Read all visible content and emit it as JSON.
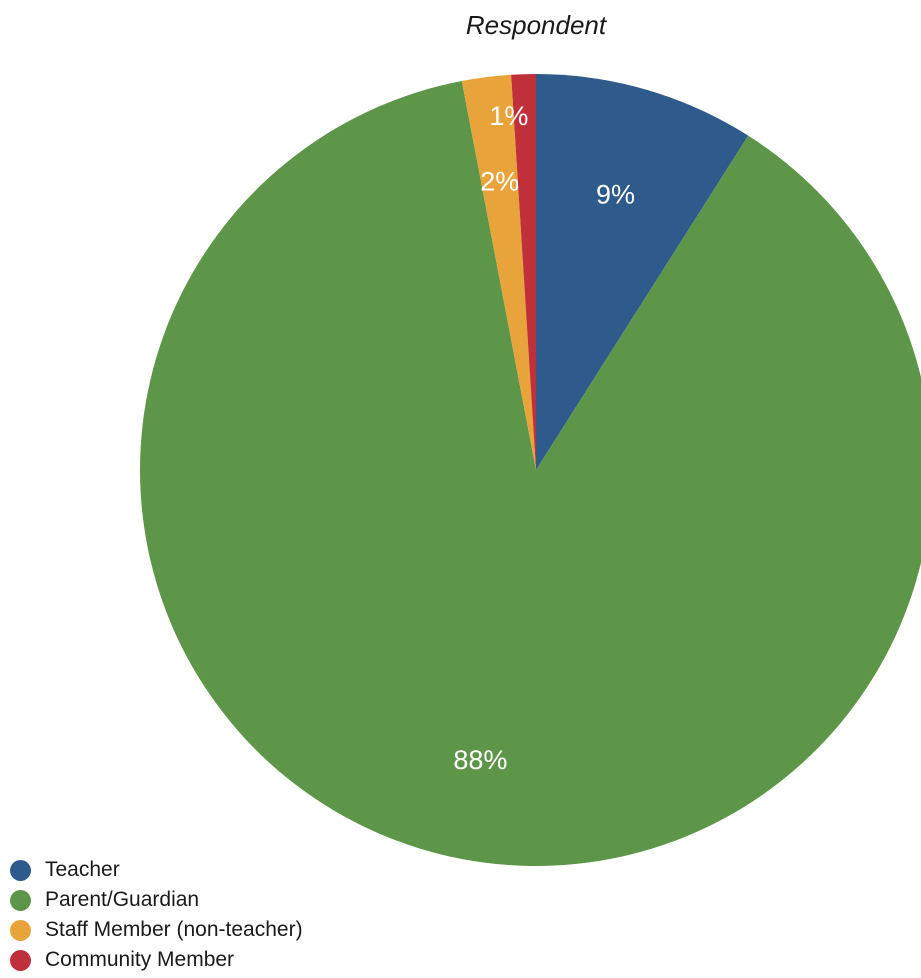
{
  "chart_data": {
    "type": "pie",
    "title": "Respondent",
    "start_angle_deg": 0,
    "direction": "clockwise",
    "legend_position": "bottom-left",
    "slices": [
      {
        "name": "Teacher",
        "value": 9,
        "label": "9%",
        "color": "#2e5a8c"
      },
      {
        "name": "Parent/Guardian",
        "value": 88,
        "label": "88%",
        "color": "#5e9649"
      },
      {
        "name": "Staff Member (non-teacher)",
        "value": 2,
        "label": "2%",
        "color": "#e8a33a"
      },
      {
        "name": "Community Member",
        "value": 1,
        "label": "1%",
        "color": "#c0303a"
      }
    ]
  }
}
